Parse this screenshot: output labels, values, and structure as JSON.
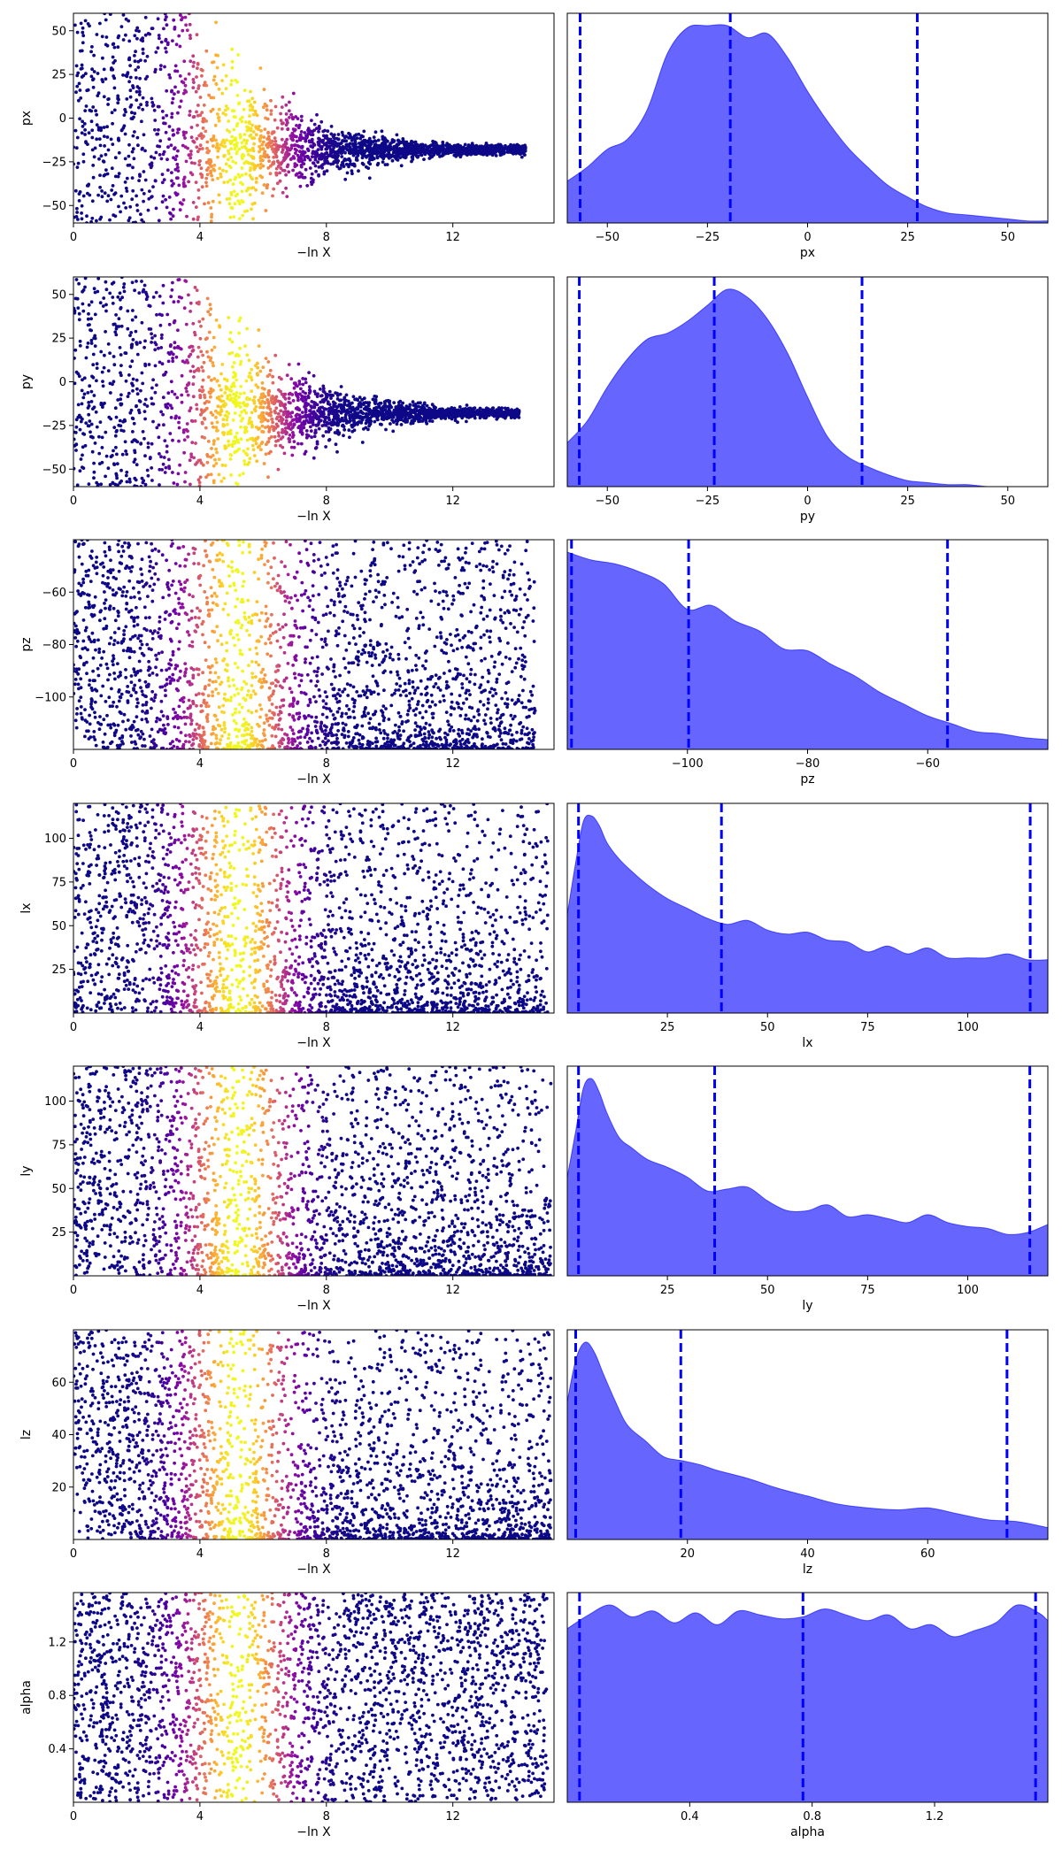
{
  "chart_data": [
    {
      "type": "scatter",
      "param": "px",
      "xlabel": "−ln X",
      "ylabel": "px",
      "xlim": [
        0,
        15.2
      ],
      "ylim": [
        -60,
        60
      ],
      "xticks": [
        {
          "v": 0,
          "t": "0"
        },
        {
          "v": 4,
          "t": "4"
        },
        {
          "v": 8,
          "t": "8"
        },
        {
          "v": 12,
          "t": "12"
        }
      ],
      "yticks": [
        {
          "v": 50,
          "t": "50"
        },
        {
          "v": 25,
          "t": "25"
        },
        {
          "v": 0,
          "t": "0"
        },
        {
          "v": -25,
          "t": "−25"
        },
        {
          "v": -50,
          "t": "−50"
        }
      ],
      "shape": "funnel",
      "center": -18,
      "tail_x": 14.3,
      "colormap": "plasma",
      "color_encodes": "posterior weight",
      "peak_x": 5.2
    },
    {
      "type": "area",
      "param": "px",
      "xlabel": "px",
      "ylabel": "",
      "xlim": [
        -60,
        60
      ],
      "xticks": [
        {
          "v": -50,
          "t": "−50"
        },
        {
          "v": -25,
          "t": "−25"
        },
        {
          "v": 0,
          "t": "0"
        },
        {
          "v": 25,
          "t": "25"
        },
        {
          "v": 50,
          "t": "50"
        }
      ],
      "x": [
        -60,
        -55,
        -50,
        -45,
        -40,
        -35,
        -30,
        -25,
        -20,
        -15,
        -10,
        -5,
        0,
        5,
        10,
        15,
        20,
        25,
        30,
        35,
        40,
        45,
        50,
        55,
        60
      ],
      "density": [
        0.21,
        0.28,
        0.37,
        0.42,
        0.57,
        0.85,
        0.98,
        0.99,
        0.99,
        0.93,
        0.95,
        0.83,
        0.66,
        0.51,
        0.38,
        0.28,
        0.19,
        0.13,
        0.08,
        0.05,
        0.04,
        0.03,
        0.02,
        0.01,
        0.01
      ],
      "quantile_lines": [
        -56.8,
        -19.3,
        27.4
      ],
      "fill_color": "#6666ff",
      "line_color": "#0000ff"
    },
    {
      "type": "scatter",
      "param": "py",
      "xlabel": "−ln X",
      "ylabel": "py",
      "xlim": [
        0,
        15.2
      ],
      "ylim": [
        -60,
        60
      ],
      "xticks": [
        {
          "v": 0,
          "t": "0"
        },
        {
          "v": 4,
          "t": "4"
        },
        {
          "v": 8,
          "t": "8"
        },
        {
          "v": 12,
          "t": "12"
        }
      ],
      "yticks": [
        {
          "v": 50,
          "t": "50"
        },
        {
          "v": 25,
          "t": "25"
        },
        {
          "v": 0,
          "t": "0"
        },
        {
          "v": -25,
          "t": "−25"
        },
        {
          "v": -50,
          "t": "−50"
        }
      ],
      "shape": "funnel",
      "center": -18,
      "tail_x": 14.1,
      "colormap": "plasma",
      "color_encodes": "posterior weight",
      "peak_x": 5.2
    },
    {
      "type": "area",
      "param": "py",
      "xlabel": "py",
      "ylabel": "",
      "xlim": [
        -60,
        60
      ],
      "xticks": [
        {
          "v": -50,
          "t": "−50"
        },
        {
          "v": -25,
          "t": "−25"
        },
        {
          "v": 0,
          "t": "0"
        },
        {
          "v": 25,
          "t": "25"
        },
        {
          "v": 50,
          "t": "50"
        }
      ],
      "x": [
        -60,
        -55,
        -50,
        -45,
        -40,
        -35,
        -30,
        -25,
        -20,
        -15,
        -10,
        -5,
        0,
        5,
        10,
        15,
        20,
        25,
        30,
        35,
        40,
        45,
        50,
        55,
        60
      ],
      "density": [
        0.22,
        0.33,
        0.5,
        0.64,
        0.74,
        0.77,
        0.83,
        0.91,
        0.99,
        0.95,
        0.84,
        0.67,
        0.45,
        0.25,
        0.15,
        0.1,
        0.06,
        0.03,
        0.02,
        0.01,
        0.01,
        0.0,
        0.0,
        0.0,
        0.0
      ],
      "quantile_lines": [
        -57.0,
        -23.3,
        13.6
      ],
      "fill_color": "#6666ff",
      "line_color": "#0000ff"
    },
    {
      "type": "scatter",
      "param": "pz",
      "xlabel": "−ln X",
      "ylabel": "pz",
      "xlim": [
        0,
        15.2
      ],
      "ylim": [
        -120,
        -40
      ],
      "xticks": [
        {
          "v": 0,
          "t": "0"
        },
        {
          "v": 4,
          "t": "4"
        },
        {
          "v": 8,
          "t": "8"
        },
        {
          "v": 12,
          "t": "12"
        }
      ],
      "yticks": [
        {
          "v": -60,
          "t": "−60"
        },
        {
          "v": -80,
          "t": "−80"
        },
        {
          "v": -100,
          "t": "−100"
        }
      ],
      "shape": "skew-low",
      "tail_x": 14.6,
      "colormap": "plasma",
      "color_encodes": "posterior weight",
      "peak_x": 5.2
    },
    {
      "type": "area",
      "param": "pz",
      "xlabel": "pz",
      "ylabel": "",
      "xlim": [
        -120,
        -40
      ],
      "xticks": [
        {
          "v": -100,
          "t": "−100"
        },
        {
          "v": -80,
          "t": "−80"
        },
        {
          "v": -60,
          "t": "−60"
        }
      ],
      "x": [
        -120,
        -116,
        -112,
        -108,
        -104,
        -100,
        -96,
        -92,
        -88,
        -84,
        -80,
        -76,
        -72,
        -68,
        -64,
        -60,
        -56,
        -52,
        -48,
        -44,
        -40
      ],
      "density": [
        1.0,
        0.96,
        0.94,
        0.9,
        0.84,
        0.71,
        0.73,
        0.65,
        0.6,
        0.51,
        0.5,
        0.43,
        0.37,
        0.29,
        0.23,
        0.17,
        0.13,
        0.09,
        0.08,
        0.06,
        0.05
      ],
      "quantile_lines": [
        -119.3,
        -99.8,
        -56.7
      ],
      "fill_color": "#6666ff",
      "line_color": "#0000ff"
    },
    {
      "type": "scatter",
      "param": "lx",
      "xlabel": "−ln X",
      "ylabel": "lx",
      "xlim": [
        0,
        15.2
      ],
      "ylim": [
        0,
        120
      ],
      "xticks": [
        {
          "v": 0,
          "t": "0"
        },
        {
          "v": 4,
          "t": "4"
        },
        {
          "v": 8,
          "t": "8"
        },
        {
          "v": 12,
          "t": "12"
        }
      ],
      "yticks": [
        {
          "v": 100,
          "t": "100"
        },
        {
          "v": 75,
          "t": "75"
        },
        {
          "v": 50,
          "t": "50"
        },
        {
          "v": 25,
          "t": "25"
        }
      ],
      "shape": "skew-low",
      "tail_x": 15.0,
      "colormap": "plasma",
      "color_encodes": "posterior weight",
      "peak_x": 5.2
    },
    {
      "type": "area",
      "param": "lx",
      "xlabel": "lx",
      "ylabel": "",
      "xlim": [
        0,
        120
      ],
      "xticks": [
        {
          "v": 25,
          "t": "25"
        },
        {
          "v": 50,
          "t": "50"
        },
        {
          "v": 75,
          "t": "75"
        },
        {
          "v": 100,
          "t": "100"
        }
      ],
      "x": [
        0,
        2,
        4,
        6,
        8,
        10,
        13,
        16,
        20,
        25,
        30,
        35,
        40,
        45,
        50,
        55,
        60,
        65,
        70,
        75,
        80,
        85,
        90,
        95,
        100,
        105,
        110,
        115,
        120
      ],
      "density": [
        0.5,
        0.75,
        0.97,
        1.0,
        0.95,
        0.86,
        0.78,
        0.72,
        0.65,
        0.58,
        0.53,
        0.48,
        0.45,
        0.47,
        0.42,
        0.4,
        0.41,
        0.37,
        0.36,
        0.31,
        0.34,
        0.3,
        0.33,
        0.28,
        0.28,
        0.28,
        0.3,
        0.27,
        0.27
      ],
      "quantile_lines": [
        2.8,
        38.5,
        115.6
      ],
      "fill_color": "#6666ff",
      "line_color": "#0000ff"
    },
    {
      "type": "scatter",
      "param": "ly",
      "xlabel": "−ln X",
      "ylabel": "ly",
      "xlim": [
        0,
        15.2
      ],
      "ylim": [
        0,
        120
      ],
      "xticks": [
        {
          "v": 0,
          "t": "0"
        },
        {
          "v": 4,
          "t": "4"
        },
        {
          "v": 8,
          "t": "8"
        },
        {
          "v": 12,
          "t": "12"
        }
      ],
      "yticks": [
        {
          "v": 100,
          "t": "100"
        },
        {
          "v": 75,
          "t": "75"
        },
        {
          "v": 50,
          "t": "50"
        },
        {
          "v": 25,
          "t": "25"
        }
      ],
      "shape": "skew-low",
      "tail_x": 15.1,
      "colormap": "plasma",
      "color_encodes": "posterior weight",
      "peak_x": 5.2
    },
    {
      "type": "area",
      "param": "ly",
      "xlabel": "ly",
      "ylabel": "",
      "xlim": [
        0,
        120
      ],
      "xticks": [
        {
          "v": 25,
          "t": "25"
        },
        {
          "v": 50,
          "t": "50"
        },
        {
          "v": 75,
          "t": "75"
        },
        {
          "v": 100,
          "t": "100"
        }
      ],
      "x": [
        0,
        2,
        4,
        6,
        8,
        10,
        13,
        16,
        20,
        25,
        30,
        35,
        40,
        45,
        50,
        55,
        60,
        65,
        70,
        75,
        80,
        85,
        90,
        95,
        100,
        105,
        110,
        115,
        120
      ],
      "density": [
        0.5,
        0.72,
        0.95,
        1.0,
        0.93,
        0.82,
        0.7,
        0.65,
        0.59,
        0.55,
        0.5,
        0.43,
        0.44,
        0.45,
        0.38,
        0.33,
        0.33,
        0.36,
        0.3,
        0.31,
        0.29,
        0.27,
        0.31,
        0.27,
        0.25,
        0.24,
        0.21,
        0.22,
        0.26
      ],
      "quantile_lines": [
        2.8,
        36.8,
        115.5
      ],
      "fill_color": "#6666ff",
      "line_color": "#0000ff"
    },
    {
      "type": "scatter",
      "param": "lz",
      "xlabel": "−ln X",
      "ylabel": "lz",
      "xlim": [
        0,
        15.2
      ],
      "ylim": [
        0,
        80
      ],
      "xticks": [
        {
          "v": 0,
          "t": "0"
        },
        {
          "v": 4,
          "t": "4"
        },
        {
          "v": 8,
          "t": "8"
        },
        {
          "v": 12,
          "t": "12"
        }
      ],
      "yticks": [
        {
          "v": 60,
          "t": "60"
        },
        {
          "v": 40,
          "t": "40"
        },
        {
          "v": 20,
          "t": "20"
        }
      ],
      "shape": "skew-low",
      "tail_x": 15.1,
      "colormap": "plasma",
      "color_encodes": "posterior weight",
      "peak_x": 5.2
    },
    {
      "type": "area",
      "param": "lz",
      "xlabel": "lz",
      "ylabel": "",
      "xlim": [
        0,
        80
      ],
      "xticks": [
        {
          "v": 20,
          "t": "20"
        },
        {
          "v": 40,
          "t": "40"
        },
        {
          "v": 60,
          "t": "60"
        }
      ],
      "x": [
        0,
        1.5,
        3,
        4.5,
        6,
        8,
        10,
        13,
        16,
        19,
        22,
        25,
        30,
        35,
        40,
        45,
        50,
        55,
        60,
        65,
        70,
        75,
        80
      ],
      "density": [
        0.7,
        0.92,
        1.0,
        0.95,
        0.84,
        0.7,
        0.58,
        0.5,
        0.42,
        0.4,
        0.38,
        0.35,
        0.31,
        0.26,
        0.22,
        0.18,
        0.16,
        0.15,
        0.16,
        0.13,
        0.1,
        0.09,
        0.06
      ],
      "quantile_lines": [
        1.4,
        18.9,
        73.2
      ],
      "fill_color": "#6666ff",
      "line_color": "#0000ff"
    },
    {
      "type": "scatter",
      "param": "alpha",
      "xlabel": "−ln X",
      "ylabel": "alpha",
      "xlim": [
        0,
        15.2
      ],
      "ylim": [
        0,
        1.57
      ],
      "xticks": [
        {
          "v": 0,
          "t": "0"
        },
        {
          "v": 4,
          "t": "4"
        },
        {
          "v": 8,
          "t": "8"
        },
        {
          "v": 12,
          "t": "12"
        }
      ],
      "yticks": [
        {
          "v": 1.2,
          "t": "1.2"
        },
        {
          "v": 0.8,
          "t": "0.8"
        },
        {
          "v": 0.4,
          "t": "0.4"
        }
      ],
      "shape": "uniform",
      "tail_x": 15.0,
      "colormap": "plasma",
      "color_encodes": "posterior weight",
      "peak_x": 5.2
    },
    {
      "type": "area",
      "param": "alpha",
      "xlabel": "alpha",
      "ylabel": "",
      "xlim": [
        0,
        1.57
      ],
      "xticks": [
        {
          "v": 0.4,
          "t": "0.4"
        },
        {
          "v": 0.8,
          "t": "0.8"
        },
        {
          "v": 1.2,
          "t": "1.2"
        }
      ],
      "x": [
        0,
        0.07,
        0.14,
        0.21,
        0.28,
        0.35,
        0.42,
        0.49,
        0.56,
        0.63,
        0.7,
        0.77,
        0.84,
        0.91,
        0.98,
        1.05,
        1.12,
        1.19,
        1.26,
        1.33,
        1.4,
        1.47,
        1.54,
        1.57
      ],
      "density": [
        0.88,
        0.95,
        1.0,
        0.94,
        0.97,
        0.91,
        0.96,
        0.9,
        0.97,
        0.95,
        0.93,
        0.94,
        0.98,
        0.95,
        0.92,
        0.95,
        0.88,
        0.9,
        0.84,
        0.87,
        0.91,
        1.0,
        0.96,
        0.92
      ],
      "quantile_lines": [
        0.04,
        0.77,
        1.53
      ],
      "fill_color": "#6666ff",
      "line_color": "#0000ff"
    }
  ]
}
